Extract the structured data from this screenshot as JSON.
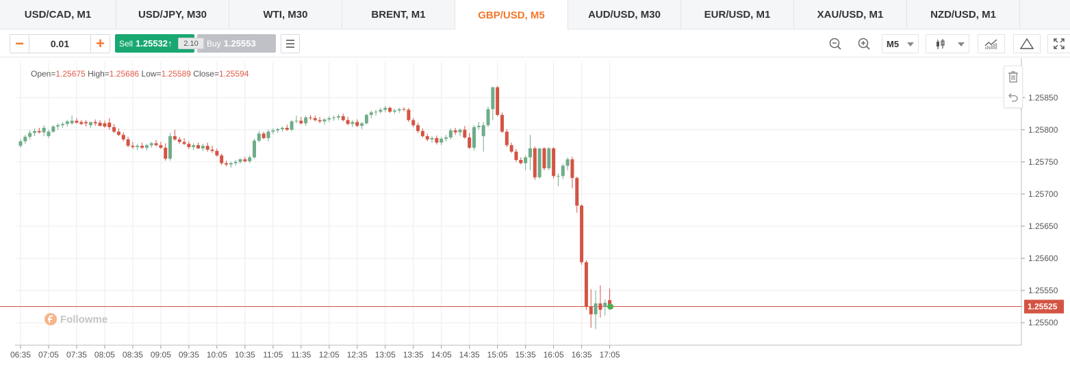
{
  "tabs": [
    {
      "label": "USD/CAD, M1",
      "active": false
    },
    {
      "label": "USD/JPY, M30",
      "active": false
    },
    {
      "label": "WTI, M30",
      "active": false
    },
    {
      "label": "BRENT, M1",
      "active": false
    },
    {
      "label": "GBP/USD, M5",
      "active": true
    },
    {
      "label": "AUD/USD, M30",
      "active": false
    },
    {
      "label": "EUR/USD, M1",
      "active": false
    },
    {
      "label": "XAU/USD, M1",
      "active": false
    },
    {
      "label": "NZD/USD, M1",
      "active": false
    }
  ],
  "toolbar": {
    "lot_minus": "−",
    "lot_value": "0.01",
    "lot_plus": "+",
    "sell_label": "Sell",
    "sell_price": "1.25532↑",
    "spread": "2.10",
    "buy_label": "Buy",
    "buy_price": "1.25553",
    "period": "M5"
  },
  "ohlc": {
    "open_label": "Open=",
    "open": "1.25675",
    "high_label": "High=",
    "high": "1.25686",
    "low_label": "Low=",
    "low": "1.25589",
    "close_label": "Close=",
    "close": "1.25594"
  },
  "watermark": "Followme",
  "colors": {
    "up": "#6fac8a",
    "down": "#d35443",
    "accent": "#f5762a",
    "sell": "#19a871",
    "buy": "#bfc1c6",
    "price_line": "#d35443"
  },
  "icons": [
    "zoom-out-icon",
    "zoom-in-icon",
    "candlestick-icon",
    "indicators-icon",
    "drawing-triangle-icon",
    "fullscreen-icon",
    "trash-icon",
    "undo-icon",
    "menu-icon"
  ],
  "chart_data": {
    "type": "candlestick",
    "symbol": "GBP/USD",
    "timeframe": "M5",
    "ylim": [
      1.25465,
      1.25905
    ],
    "y_ticks": [
      "1.25850",
      "1.25800",
      "1.25750",
      "1.25700",
      "1.25650",
      "1.25600",
      "1.25550",
      "1.25500"
    ],
    "x_ticks": [
      "06:35",
      "07:05",
      "07:35",
      "08:05",
      "08:35",
      "09:05",
      "09:35",
      "10:05",
      "10:35",
      "11:05",
      "11:35",
      "12:05",
      "12:35",
      "13:05",
      "13:35",
      "14:05",
      "14:35",
      "15:05",
      "15:35",
      "16:05",
      "16:35",
      "17:05"
    ],
    "current_price": 1.25525,
    "current_price_label": "1.25525",
    "candles": [
      [
        1.25775,
        1.25785,
        1.25772,
        1.25782
      ],
      [
        1.25782,
        1.25792,
        1.25778,
        1.25789
      ],
      [
        1.25789,
        1.25799,
        1.25785,
        1.25795
      ],
      [
        1.25795,
        1.25802,
        1.2579,
        1.25798
      ],
      [
        1.25798,
        1.25803,
        1.25794,
        1.25796
      ],
      [
        1.25796,
        1.25807,
        1.2579,
        1.25803
      ],
      [
        1.2579,
        1.258,
        1.25787,
        1.25797
      ],
      [
        1.25797,
        1.25807,
        1.25795,
        1.25805
      ],
      [
        1.25805,
        1.2581,
        1.258,
        1.25807
      ],
      [
        1.25807,
        1.25812,
        1.25803,
        1.25809
      ],
      [
        1.25809,
        1.25815,
        1.25805,
        1.25813
      ],
      [
        1.2581,
        1.25822,
        1.25808,
        1.25814
      ],
      [
        1.25814,
        1.25818,
        1.25809,
        1.25811
      ],
      [
        1.25812,
        1.25815,
        1.25807,
        1.25809
      ],
      [
        1.25812,
        1.25815,
        1.25805,
        1.2581
      ],
      [
        1.25807,
        1.25812,
        1.25803,
        1.25812
      ],
      [
        1.25812,
        1.25816,
        1.25806,
        1.2581
      ],
      [
        1.25811,
        1.25815,
        1.25805,
        1.25806
      ],
      [
        1.2581,
        1.25814,
        1.25803,
        1.25805
      ],
      [
        1.25811,
        1.25818,
        1.258,
        1.25804
      ],
      [
        1.25804,
        1.25809,
        1.25795,
        1.25797
      ],
      [
        1.25797,
        1.25802,
        1.2579,
        1.25792
      ],
      [
        1.25792,
        1.25796,
        1.25782,
        1.25785
      ],
      [
        1.25785,
        1.25789,
        1.25773,
        1.25775
      ],
      [
        1.25775,
        1.25781,
        1.2577,
        1.25773
      ],
      [
        1.25773,
        1.25778,
        1.25768,
        1.25775
      ],
      [
        1.25775,
        1.2578,
        1.2577,
        1.25772
      ],
      [
        1.25772,
        1.25778,
        1.25768,
        1.25776
      ],
      [
        1.25776,
        1.25781,
        1.25772,
        1.25779
      ],
      [
        1.25779,
        1.25784,
        1.25774,
        1.25776
      ],
      [
        1.25776,
        1.25781,
        1.2577,
        1.25772
      ],
      [
        1.25772,
        1.25779,
        1.25752,
        1.25755
      ],
      [
        1.25755,
        1.25795,
        1.25752,
        1.2579
      ],
      [
        1.2579,
        1.258,
        1.25783,
        1.25785
      ],
      [
        1.25785,
        1.25789,
        1.25778,
        1.25781
      ],
      [
        1.25781,
        1.25787,
        1.25776,
        1.25778
      ],
      [
        1.25778,
        1.25782,
        1.2577,
        1.25773
      ],
      [
        1.25773,
        1.25779,
        1.25768,
        1.25776
      ],
      [
        1.25776,
        1.2578,
        1.2577,
        1.25771
      ],
      [
        1.25771,
        1.25778,
        1.25767,
        1.25775
      ],
      [
        1.25775,
        1.2578,
        1.25766,
        1.25769
      ],
      [
        1.25769,
        1.25775,
        1.25764,
        1.25767
      ],
      [
        1.25767,
        1.25771,
        1.25758,
        1.2576
      ],
      [
        1.2576,
        1.25763,
        1.25745,
        1.25748
      ],
      [
        1.25748,
        1.25752,
        1.25743,
        1.25746
      ],
      [
        1.25746,
        1.2575,
        1.25741,
        1.25748
      ],
      [
        1.25748,
        1.25753,
        1.25744,
        1.2575
      ],
      [
        1.2575,
        1.25756,
        1.25747,
        1.25754
      ],
      [
        1.25754,
        1.25758,
        1.25749,
        1.25751
      ],
      [
        1.25751,
        1.2576,
        1.25748,
        1.25757
      ],
      [
        1.25757,
        1.25786,
        1.25755,
        1.25783
      ],
      [
        1.25783,
        1.25798,
        1.2578,
        1.25794
      ],
      [
        1.25794,
        1.25797,
        1.25785,
        1.25787
      ],
      [
        1.25787,
        1.258,
        1.25782,
        1.25797
      ],
      [
        1.25797,
        1.25802,
        1.25793,
        1.25799
      ],
      [
        1.25799,
        1.25803,
        1.25795,
        1.25801
      ],
      [
        1.25801,
        1.25805,
        1.25797,
        1.25803
      ],
      [
        1.25803,
        1.25808,
        1.25798,
        1.258
      ],
      [
        1.258,
        1.25815,
        1.25798,
        1.25813
      ],
      [
        1.25813,
        1.25822,
        1.2581,
        1.25814
      ],
      [
        1.25814,
        1.2582,
        1.25808,
        1.2581
      ],
      [
        1.2581,
        1.25822,
        1.25806,
        1.25819
      ],
      [
        1.25819,
        1.25823,
        1.25815,
        1.25818
      ],
      [
        1.25818,
        1.25822,
        1.25813,
        1.25815
      ],
      [
        1.25815,
        1.2582,
        1.2581,
        1.25813
      ],
      [
        1.25813,
        1.25818,
        1.25808,
        1.25816
      ],
      [
        1.25816,
        1.25821,
        1.25812,
        1.25818
      ],
      [
        1.25818,
        1.25822,
        1.25814,
        1.25819
      ],
      [
        1.25819,
        1.25824,
        1.25815,
        1.25821
      ],
      [
        1.25821,
        1.25825,
        1.25813,
        1.25815
      ],
      [
        1.25815,
        1.2582,
        1.25807,
        1.25809
      ],
      [
        1.25809,
        1.25815,
        1.25804,
        1.25812
      ],
      [
        1.25812,
        1.25816,
        1.25804,
        1.25806
      ],
      [
        1.25806,
        1.25812,
        1.25801,
        1.2581
      ],
      [
        1.2581,
        1.25825,
        1.25808,
        1.25823
      ],
      [
        1.25823,
        1.2583,
        1.25818,
        1.25827
      ],
      [
        1.25827,
        1.25831,
        1.25822,
        1.25828
      ],
      [
        1.25828,
        1.25834,
        1.25825,
        1.25831
      ],
      [
        1.25831,
        1.25837,
        1.25827,
        1.25834
      ],
      [
        1.25834,
        1.25836,
        1.25826,
        1.25828
      ],
      [
        1.25828,
        1.25833,
        1.25825,
        1.2583
      ],
      [
        1.2583,
        1.25834,
        1.25826,
        1.25832
      ],
      [
        1.25832,
        1.25835,
        1.25829,
        1.25831
      ],
      [
        1.25831,
        1.25834,
        1.25812,
        1.25815
      ],
      [
        1.25815,
        1.25818,
        1.25804,
        1.25807
      ],
      [
        1.25807,
        1.25811,
        1.25795,
        1.25798
      ],
      [
        1.25798,
        1.25802,
        1.25788,
        1.2579
      ],
      [
        1.2579,
        1.25794,
        1.25782,
        1.25785
      ],
      [
        1.25785,
        1.2579,
        1.2578,
        1.25787
      ],
      [
        1.25787,
        1.25791,
        1.25777,
        1.2578
      ],
      [
        1.2578,
        1.25789,
        1.25776,
        1.25786
      ],
      [
        1.25786,
        1.25792,
        1.25782,
        1.25788
      ],
      [
        1.25788,
        1.25802,
        1.25785,
        1.25799
      ],
      [
        1.25799,
        1.25803,
        1.25792,
        1.25796
      ],
      [
        1.25796,
        1.25802,
        1.2579,
        1.258
      ],
      [
        1.258,
        1.25806,
        1.25786,
        1.25788
      ],
      [
        1.25788,
        1.25795,
        1.2577,
        1.25772
      ],
      [
        1.25772,
        1.25807,
        1.25768,
        1.25804
      ],
      [
        1.25804,
        1.25812,
        1.258,
        1.25806
      ],
      [
        1.2579,
        1.25812,
        1.25766,
        1.25807
      ],
      [
        1.25807,
        1.25836,
        1.25804,
        1.25832
      ],
      [
        1.25832,
        1.25867,
        1.25815,
        1.25866
      ],
      [
        1.25866,
        1.25868,
        1.25821,
        1.25823
      ],
      [
        1.25823,
        1.25827,
        1.25795,
        1.25797
      ],
      [
        1.25797,
        1.25801,
        1.25773,
        1.25776
      ],
      [
        1.25776,
        1.2578,
        1.25764,
        1.25766
      ],
      [
        1.25766,
        1.2577,
        1.2575,
        1.25753
      ],
      [
        1.25753,
        1.25757,
        1.25746,
        1.25748
      ],
      [
        1.25748,
        1.2576,
        1.25737,
        1.25757
      ],
      [
        1.25757,
        1.25792,
        1.25737,
        1.25771
      ],
      [
        1.25771,
        1.25774,
        1.25722,
        1.25726
      ],
      [
        1.25726,
        1.25771,
        1.25724,
        1.25771
      ],
      [
        1.25771,
        1.25773,
        1.25737,
        1.2574
      ],
      [
        1.2574,
        1.25773,
        1.25737,
        1.25771
      ],
      [
        1.25771,
        1.25773,
        1.25724,
        1.25728
      ],
      [
        1.25728,
        1.25732,
        1.25712,
        1.25728
      ],
      [
        1.25728,
        1.25747,
        1.25723,
        1.25744
      ],
      [
        1.25744,
        1.25757,
        1.25737,
        1.25754
      ],
      [
        1.25754,
        1.25758,
        1.25709,
        1.25725
      ],
      [
        1.25725,
        1.25727,
        1.25671,
        1.25682
      ],
      [
        1.25682,
        1.25684,
        1.2559,
        1.25594
      ],
      [
        1.25594,
        1.25597,
        1.2552,
        1.25525
      ],
      [
        1.25525,
        1.25552,
        1.25492,
        1.25513
      ],
      [
        1.25513,
        1.2555,
        1.2549,
        1.2553
      ],
      [
        1.2553,
        1.25558,
        1.25508,
        1.2552
      ],
      [
        1.25525,
        1.25536,
        1.25511,
        1.25531
      ],
      [
        1.25535,
        1.25553,
        1.25525,
        1.25525
      ]
    ]
  }
}
